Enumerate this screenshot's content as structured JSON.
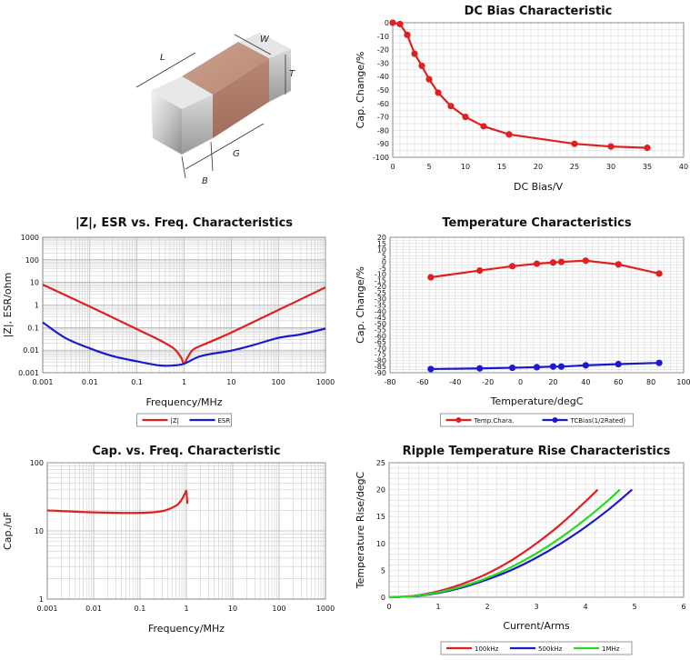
{
  "component": {
    "dimension_labels": {
      "length": "L",
      "width": "W",
      "thickness": "T",
      "band": "B",
      "gap": "G"
    }
  },
  "chart_data": [
    {
      "id": "dcbias",
      "type": "line",
      "title": "DC Bias Characteristic",
      "xlabel": "DC Bias/V",
      "ylabel": "Cap. Change/%",
      "xlim": [
        0,
        40
      ],
      "ylim": [
        -100,
        0
      ],
      "xticks": [
        0,
        5,
        10,
        15,
        20,
        25,
        30,
        35,
        40
      ],
      "yticks": [
        0,
        -10,
        -20,
        -30,
        -40,
        -50,
        -60,
        -70,
        -80,
        -90,
        -100
      ],
      "grid": true,
      "series": [
        {
          "color": "#e02020",
          "markers": true,
          "x": [
            0,
            1,
            2,
            3,
            4,
            5,
            6.25,
            8,
            10,
            12.5,
            16,
            25,
            30,
            35
          ],
          "y": [
            0,
            -1,
            -9,
            -23,
            -32,
            -42,
            -52,
            -62,
            -70,
            -77,
            -83,
            -90,
            -92,
            -93
          ]
        }
      ]
    },
    {
      "id": "impedance",
      "type": "line",
      "title": "|Z|, ESR vs. Freq. Characteristics",
      "xlabel": "Frequency/MHz",
      "ylabel": "|Z|, ESR/ohm",
      "xscale": "log",
      "yscale": "log",
      "xlim": [
        0.001,
        1000
      ],
      "ylim": [
        0.001,
        1000
      ],
      "xticks": [
        "0.001",
        "0.01",
        "0.1",
        "1",
        "10",
        "100",
        "1000"
      ],
      "yticks": [
        "1000",
        "100",
        "10",
        "1",
        "0.1",
        "0.01",
        "0.001"
      ],
      "grid": true,
      "legend_position": "bottom",
      "series": [
        {
          "name": "|Z|",
          "color": "#e02020",
          "x": [
            0.001,
            0.01,
            0.1,
            0.3,
            0.6,
            0.85,
            1.0,
            1.2,
            1.6,
            3,
            10,
            100,
            1000
          ],
          "y": [
            8,
            0.85,
            0.085,
            0.028,
            0.012,
            0.005,
            0.0025,
            0.005,
            0.011,
            0.02,
            0.06,
            0.6,
            6
          ]
        },
        {
          "name": "ESR",
          "color": "#1a1acc",
          "x": [
            0.001,
            0.003,
            0.01,
            0.03,
            0.1,
            0.3,
            0.6,
            1.0,
            2,
            4,
            10,
            30,
            100,
            300,
            1000
          ],
          "y": [
            0.17,
            0.035,
            0.012,
            0.0055,
            0.0032,
            0.0021,
            0.0021,
            0.0025,
            0.005,
            0.007,
            0.0095,
            0.017,
            0.035,
            0.05,
            0.09
          ]
        }
      ]
    },
    {
      "id": "temperature",
      "type": "line",
      "title": "Temperature Characteristics",
      "xlabel": "Temperature/degC",
      "ylabel": "Cap. Change/%",
      "xlim": [
        -80,
        100
      ],
      "ylim": [
        -90,
        20
      ],
      "xticks": [
        -80,
        -60,
        -40,
        -20,
        0,
        20,
        40,
        60,
        80,
        100
      ],
      "yticks": [
        20,
        15,
        10,
        5,
        0,
        -5,
        -10,
        -15,
        -20,
        -25,
        -30,
        -35,
        -40,
        -45,
        -50,
        -55,
        -60,
        -65,
        -70,
        -75,
        -80,
        -85,
        -90
      ],
      "grid": true,
      "legend_position": "bottom",
      "series": [
        {
          "name": "Temp.Chara.",
          "color": "#e02020",
          "markers": true,
          "x": [
            -55,
            -25,
            -5,
            10,
            20,
            25,
            40,
            60,
            85
          ],
          "y": [
            -12.5,
            -7,
            -3.5,
            -1.5,
            -0.5,
            0,
            1,
            -2,
            -9.5
          ]
        },
        {
          "name": "TCBias(1/2Rated)",
          "color": "#1a1acc",
          "markers": true,
          "x": [
            -55,
            -25,
            -5,
            10,
            20,
            25,
            40,
            60,
            85
          ],
          "y": [
            -87,
            -86.5,
            -86,
            -85.5,
            -85,
            -85,
            -84,
            -83,
            -82
          ]
        }
      ]
    },
    {
      "id": "capfreq",
      "type": "line",
      "title": "Cap. vs. Freq. Characteristic",
      "xlabel": "Frequency/MHz",
      "ylabel": "Cap./uF",
      "xscale": "log",
      "yscale": "log",
      "xlim": [
        0.001,
        1000
      ],
      "ylim": [
        1,
        100
      ],
      "xticks": [
        "0.001",
        "0.01",
        "0.1",
        "1",
        "10",
        "100",
        "1000"
      ],
      "yticks": [
        "100",
        "10",
        "1"
      ],
      "grid": true,
      "series": [
        {
          "color": "#e02020",
          "x": [
            0.001,
            0.01,
            0.1,
            0.3,
            0.6,
            0.8,
            0.9,
            0.95,
            1.0,
            1.05
          ],
          "y": [
            20,
            18.7,
            18.4,
            19.5,
            23.5,
            29,
            34,
            36,
            38,
            25
          ]
        }
      ]
    },
    {
      "id": "ripple",
      "type": "line",
      "title": "Ripple Temperature Rise Characteristics",
      "xlabel": "Current/Arms",
      "ylabel": "Temperature Rise/degC",
      "xlim": [
        0,
        6
      ],
      "ylim": [
        0,
        25
      ],
      "xticks": [
        0,
        1,
        2,
        3,
        4,
        5,
        6
      ],
      "yticks": [
        0,
        5,
        10,
        15,
        20,
        25
      ],
      "grid": true,
      "legend_position": "bottom",
      "series": [
        {
          "name": "100kHz",
          "color": "#e02020",
          "x": [
            0,
            0.5,
            1,
            1.5,
            2,
            2.5,
            3,
            3.5,
            4,
            4.25
          ],
          "y": [
            0,
            0.25,
            1.1,
            2.5,
            4.4,
            6.9,
            10.0,
            13.6,
            17.8,
            20
          ]
        },
        {
          "name": "500kHz",
          "color": "#1a1acc",
          "x": [
            0,
            0.5,
            1,
            1.5,
            2,
            2.5,
            3,
            3.5,
            4,
            4.5,
            4.95
          ],
          "y": [
            0,
            0.2,
            0.8,
            1.85,
            3.3,
            5.1,
            7.35,
            10.0,
            13.05,
            16.5,
            20
          ]
        },
        {
          "name": "1MHz",
          "color": "#22dd22",
          "x": [
            0,
            0.5,
            1,
            1.5,
            2,
            2.5,
            3,
            3.5,
            4,
            4.5,
            4.7
          ],
          "y": [
            0,
            0.22,
            0.9,
            2.05,
            3.6,
            5.65,
            8.15,
            11.1,
            14.5,
            18.3,
            20
          ]
        }
      ]
    }
  ]
}
